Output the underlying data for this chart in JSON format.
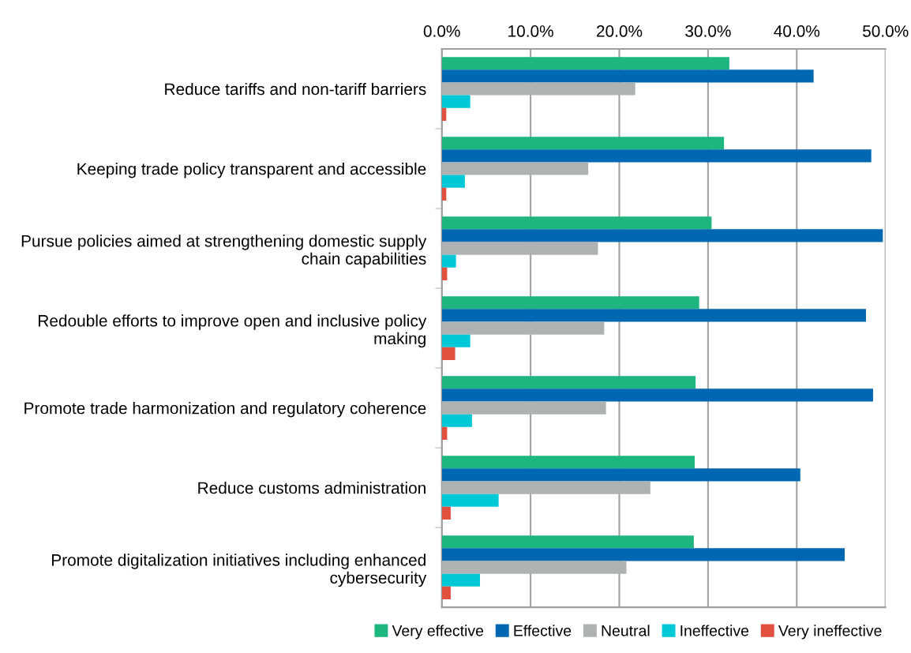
{
  "chart_data": {
    "type": "bar",
    "orientation": "horizontal",
    "categories": [
      "Reduce tariffs and non-tariff barriers",
      "Keeping trade policy transparent and accessible",
      "Pursue policies aimed at strengthening domestic supply chain capabilities",
      "Redouble efforts to improve open and inclusive policy making",
      "Promote trade harmonization and regulatory coherence",
      "Reduce customs administration",
      "Promote digitalization initiatives including enhanced cybersecurity"
    ],
    "series": [
      {
        "name": "Very effective",
        "color": "#1db67f",
        "values": [
          32.4,
          31.8,
          30.4,
          29.0,
          28.6,
          28.5,
          28.4
        ]
      },
      {
        "name": "Effective",
        "color": "#0068b2",
        "values": [
          41.9,
          48.4,
          49.7,
          47.8,
          48.6,
          40.4,
          45.4
        ]
      },
      {
        "name": "Neutral",
        "color": "#afb2b3",
        "values": [
          21.8,
          16.5,
          17.6,
          18.3,
          18.5,
          23.5,
          20.8
        ]
      },
      {
        "name": "Ineffective",
        "color": "#00c8d7",
        "values": [
          3.2,
          2.6,
          1.6,
          3.2,
          3.4,
          6.4,
          4.3
        ]
      },
      {
        "name": "Very ineffective",
        "color": "#e2513f",
        "values": [
          0.5,
          0.5,
          0.6,
          1.5,
          0.6,
          1.0,
          1.0
        ]
      }
    ],
    "xlim": [
      0,
      50
    ],
    "xticks": [
      {
        "value": 0,
        "label": "0.0%"
      },
      {
        "value": 10,
        "label": "10.0%"
      },
      {
        "value": 20,
        "label": "20.0%"
      },
      {
        "value": 30,
        "label": "30.0%"
      },
      {
        "value": 40,
        "label": "40.0%"
      },
      {
        "value": 50,
        "label": "50.0%"
      }
    ],
    "grid": "x",
    "legend": "bottom"
  }
}
